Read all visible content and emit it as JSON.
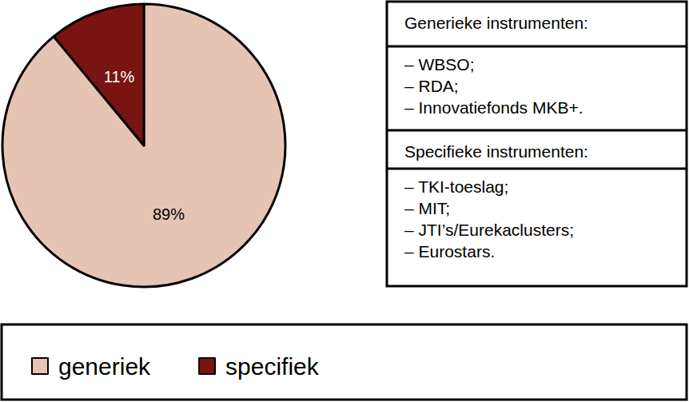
{
  "chart_data": {
    "type": "pie",
    "categories": [
      "generiek",
      "specifiek"
    ],
    "values": [
      89,
      11
    ],
    "value_labels": [
      "89%",
      "11%"
    ],
    "colors": [
      "#e6c4b4",
      "#7a1411"
    ],
    "data_labels": true,
    "legend": "bottom",
    "annotations": [
      {
        "title": "Generieke instrumenten:",
        "items": [
          "– WBSO;",
          "– RDA;",
          "– Innovatiefonds MKB+."
        ]
      },
      {
        "title": "Specifieke instrumenten:",
        "items": [
          "– TKI-toeslag;",
          "– MIT;",
          "– JTI’s/Eurekaclusters;",
          "– Eurostars."
        ]
      }
    ]
  }
}
